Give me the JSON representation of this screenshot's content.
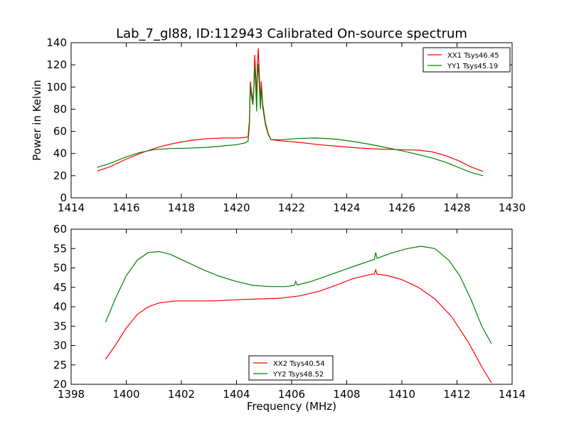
{
  "title": "Lab_7_gl88, ID:112943 Calibrated On-source spectrum",
  "chart_data": [
    {
      "type": "line",
      "xlabel": "",
      "ylabel": "Power in Kelvin",
      "xlim": [
        1414,
        1430
      ],
      "ylim": [
        0,
        140
      ],
      "xticks": [
        "1414",
        "1416",
        "1418",
        "1420",
        "1422",
        "1424",
        "1426",
        "1428",
        "1430"
      ],
      "yticks": [
        "0",
        "20",
        "40",
        "60",
        "80",
        "100",
        "120",
        "140"
      ],
      "legend_position": "top-right",
      "grid": false,
      "series": [
        {
          "name": "XX1 Tsys46.45",
          "color": "#ff0000",
          "points": [
            [
              1414.95,
              24.2
            ],
            [
              1415.4,
              28.0
            ],
            [
              1416.0,
              35.0
            ],
            [
              1416.6,
              41.0
            ],
            [
              1417.2,
              46.0
            ],
            [
              1417.8,
              49.5
            ],
            [
              1418.4,
              52.0
            ],
            [
              1419.0,
              53.5
            ],
            [
              1419.6,
              54.0
            ],
            [
              1420.1,
              54.0
            ],
            [
              1420.3,
              54.5
            ],
            [
              1420.42,
              55.0
            ],
            [
              1420.47,
              70.0
            ],
            [
              1420.5,
              105.0
            ],
            [
              1420.55,
              95.0
            ],
            [
              1420.6,
              88.0
            ],
            [
              1420.63,
              100.0
            ],
            [
              1420.66,
              129.0
            ],
            [
              1420.7,
              110.0
            ],
            [
              1420.73,
              92.0
            ],
            [
              1420.76,
              120.0
            ],
            [
              1420.79,
              135.0
            ],
            [
              1420.83,
              110.0
            ],
            [
              1420.87,
              88.0
            ],
            [
              1420.9,
              105.0
            ],
            [
              1420.95,
              85.0
            ],
            [
              1421.05,
              68.0
            ],
            [
              1421.15,
              58.0
            ],
            [
              1421.25,
              52.5
            ],
            [
              1421.6,
              51.5
            ],
            [
              1422.3,
              50.0
            ],
            [
              1423.0,
              48.0
            ],
            [
              1423.7,
              46.5
            ],
            [
              1424.4,
              45.0
            ],
            [
              1425.2,
              44.0
            ],
            [
              1426.0,
              43.5
            ],
            [
              1426.6,
              43.0
            ],
            [
              1427.1,
              41.5
            ],
            [
              1427.6,
              38.0
            ],
            [
              1428.1,
              33.0
            ],
            [
              1428.5,
              28.0
            ],
            [
              1428.95,
              23.8
            ]
          ]
        },
        {
          "name": "YY1 Tsys45.19",
          "color": "#008000",
          "points": [
            [
              1414.95,
              27.5
            ],
            [
              1415.4,
              31.0
            ],
            [
              1416.0,
              37.0
            ],
            [
              1416.5,
              41.0
            ],
            [
              1417.0,
              43.5
            ],
            [
              1417.6,
              44.5
            ],
            [
              1418.2,
              44.8
            ],
            [
              1418.9,
              45.5
            ],
            [
              1419.5,
              46.8
            ],
            [
              1420.0,
              48.0
            ],
            [
              1420.3,
              49.5
            ],
            [
              1420.42,
              51.0
            ],
            [
              1420.47,
              65.0
            ],
            [
              1420.5,
              100.0
            ],
            [
              1420.55,
              90.0
            ],
            [
              1420.6,
              84.0
            ],
            [
              1420.63,
              98.0
            ],
            [
              1420.66,
              119.0
            ],
            [
              1420.7,
              100.0
            ],
            [
              1420.73,
              78.0
            ],
            [
              1420.76,
              110.0
            ],
            [
              1420.79,
              121.0
            ],
            [
              1420.83,
              100.0
            ],
            [
              1420.87,
              80.0
            ],
            [
              1420.9,
              100.0
            ],
            [
              1420.95,
              82.0
            ],
            [
              1421.05,
              66.0
            ],
            [
              1421.15,
              57.0
            ],
            [
              1421.25,
              52.5
            ],
            [
              1421.6,
              52.5
            ],
            [
              1422.2,
              53.5
            ],
            [
              1422.9,
              54.0
            ],
            [
              1423.6,
              53.0
            ],
            [
              1424.2,
              51.0
            ],
            [
              1424.8,
              48.5
            ],
            [
              1425.4,
              45.5
            ],
            [
              1426.0,
              42.5
            ],
            [
              1426.6,
              39.0
            ],
            [
              1427.1,
              36.0
            ],
            [
              1427.6,
              32.0
            ],
            [
              1428.1,
              27.0
            ],
            [
              1428.5,
              23.0
            ],
            [
              1428.95,
              20.0
            ]
          ]
        }
      ]
    },
    {
      "type": "line",
      "xlabel": "Frequency (MHz)",
      "ylabel": "",
      "xlim": [
        1398,
        1414
      ],
      "ylim": [
        20,
        60
      ],
      "xticks": [
        "1398",
        "1400",
        "1402",
        "1404",
        "1406",
        "1408",
        "1410",
        "1412",
        "1414"
      ],
      "yticks": [
        "20",
        "25",
        "30",
        "35",
        "40",
        "45",
        "50",
        "55",
        "60"
      ],
      "legend_position": "bottom-center",
      "grid": false,
      "series": [
        {
          "name": "XX2 Tsys40.54",
          "color": "#ff0000",
          "points": [
            [
              1399.25,
              26.5
            ],
            [
              1399.6,
              30.0
            ],
            [
              1400.0,
              34.5
            ],
            [
              1400.4,
              38.0
            ],
            [
              1400.8,
              40.0
            ],
            [
              1401.2,
              41.0
            ],
            [
              1401.8,
              41.5
            ],
            [
              1402.5,
              41.5
            ],
            [
              1403.2,
              41.5
            ],
            [
              1404.0,
              41.8
            ],
            [
              1404.8,
              42.0
            ],
            [
              1405.6,
              42.2
            ],
            [
              1406.3,
              42.8
            ],
            [
              1407.0,
              44.0
            ],
            [
              1407.6,
              45.5
            ],
            [
              1408.2,
              47.2
            ],
            [
              1408.8,
              48.2
            ],
            [
              1409.0,
              48.5
            ],
            [
              1409.05,
              49.5
            ],
            [
              1409.1,
              48.4
            ],
            [
              1409.5,
              48.0
            ],
            [
              1410.0,
              47.0
            ],
            [
              1410.6,
              45.0
            ],
            [
              1411.2,
              42.0
            ],
            [
              1411.8,
              37.5
            ],
            [
              1412.4,
              31.0
            ],
            [
              1412.9,
              24.5
            ],
            [
              1413.25,
              20.4
            ]
          ]
        },
        {
          "name": "YY2 Tsys48.52",
          "color": "#008000",
          "points": [
            [
              1399.25,
              36.0
            ],
            [
              1399.6,
              42.0
            ],
            [
              1400.0,
              48.0
            ],
            [
              1400.4,
              52.0
            ],
            [
              1400.8,
              54.0
            ],
            [
              1401.2,
              54.2
            ],
            [
              1401.6,
              53.5
            ],
            [
              1402.2,
              51.5
            ],
            [
              1402.8,
              49.5
            ],
            [
              1403.4,
              47.8
            ],
            [
              1404.0,
              46.5
            ],
            [
              1404.6,
              45.5
            ],
            [
              1405.2,
              45.2
            ],
            [
              1405.8,
              45.2
            ],
            [
              1406.1,
              45.5
            ],
            [
              1406.15,
              46.5
            ],
            [
              1406.2,
              45.6
            ],
            [
              1406.7,
              46.5
            ],
            [
              1407.3,
              48.0
            ],
            [
              1407.9,
              49.5
            ],
            [
              1408.5,
              51.0
            ],
            [
              1409.0,
              52.2
            ],
            [
              1409.05,
              54.0
            ],
            [
              1409.1,
              52.5
            ],
            [
              1409.6,
              53.8
            ],
            [
              1410.2,
              55.0
            ],
            [
              1410.7,
              55.6
            ],
            [
              1411.2,
              55.0
            ],
            [
              1411.7,
              52.0
            ],
            [
              1412.1,
              48.0
            ],
            [
              1412.5,
              42.0
            ],
            [
              1412.9,
              35.0
            ],
            [
              1413.25,
              30.5
            ]
          ]
        }
      ]
    }
  ]
}
